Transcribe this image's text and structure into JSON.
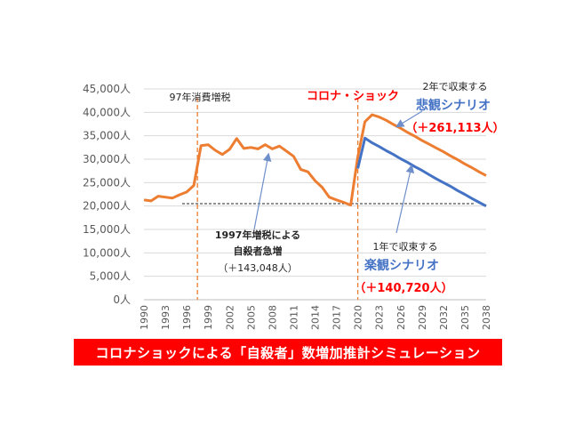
{
  "banner": "コロナショックによる「自殺者」数増加推計シミュレーション",
  "colors": {
    "orange": "#ED7D31",
    "blue": "#4472C4",
    "red": "#FF0000",
    "gray": "#595959"
  },
  "annotations": {
    "tax_1997": "97年消費増税",
    "corona": "コロナ・ショック",
    "pess_note": "2年で収束する",
    "pess_title": "悲観シナリオ",
    "pess_value": "（＋261,113人）",
    "opt_note": "1年で収束する",
    "opt_title": "楽観シナリオ",
    "opt_value": "（＋140,720人）",
    "tax_effect_1": "1997年増税による",
    "tax_effect_2": "自殺者急増",
    "tax_effect_3": "（＋143,048人）"
  },
  "chart_data": {
    "type": "line",
    "title": "",
    "xlabel": "",
    "ylabel": "",
    "ylim": [
      0,
      45000
    ],
    "xlim": [
      1990,
      2038
    ],
    "y_ticks": [
      "0人",
      "5,000人",
      "10,000人",
      "15,000人",
      "20,000人",
      "25,000人",
      "30,000人",
      "35,000人",
      "40,000人",
      "45,000人"
    ],
    "x_ticks": [
      "1990",
      "1993",
      "1996",
      "1999",
      "2002",
      "2005",
      "2008",
      "2011",
      "2014",
      "2017",
      "2020",
      "2023",
      "2026",
      "2029",
      "2032",
      "2035",
      "2038"
    ],
    "vlines": [
      1997.5,
      2020
    ],
    "hline": 20500,
    "series": [
      {
        "name": "",
        "color": "#ED7D31",
        "x": [
          1990,
          1991,
          1992,
          1993,
          1994,
          1995,
          1996,
          1997,
          1998,
          1999,
          2000,
          2001,
          2002,
          2003,
          2004,
          2005,
          2006,
          2007,
          2008,
          2009,
          2010,
          2011,
          2012,
          2013,
          2014,
          2015,
          2016,
          2017,
          2018,
          2019,
          2020,
          2021,
          2022,
          2023,
          2024,
          2025,
          2026,
          2027,
          2028,
          2029,
          2030,
          2031,
          2032,
          2033,
          2034,
          2035,
          2036,
          2037,
          2038
        ],
        "values": [
          21300,
          21100,
          22100,
          21900,
          21700,
          22400,
          23000,
          24400,
          32900,
          33100,
          31900,
          31000,
          32100,
          34400,
          32300,
          32500,
          32200,
          33100,
          32200,
          32800,
          31700,
          30600,
          27800,
          27300,
          25400,
          24000,
          21900,
          21300,
          20800,
          20200,
          30500,
          38000,
          39500,
          39000,
          38300,
          37400,
          36600,
          35700,
          34900,
          34000,
          33200,
          32400,
          31600,
          30700,
          29900,
          29000,
          28200,
          27300,
          26500
        ]
      },
      {
        "name": "",
        "color": "#4472C4",
        "x": [
          2020,
          2021,
          2022,
          2023,
          2024,
          2025,
          2026,
          2027,
          2028,
          2029,
          2030,
          2031,
          2032,
          2033,
          2034,
          2035,
          2036,
          2037,
          2038
        ],
        "values": [
          28000,
          34500,
          33500,
          32700,
          31800,
          31000,
          30100,
          29300,
          28400,
          27600,
          26700,
          25800,
          25000,
          24200,
          23300,
          22500,
          21600,
          20800,
          20000
        ]
      }
    ]
  }
}
